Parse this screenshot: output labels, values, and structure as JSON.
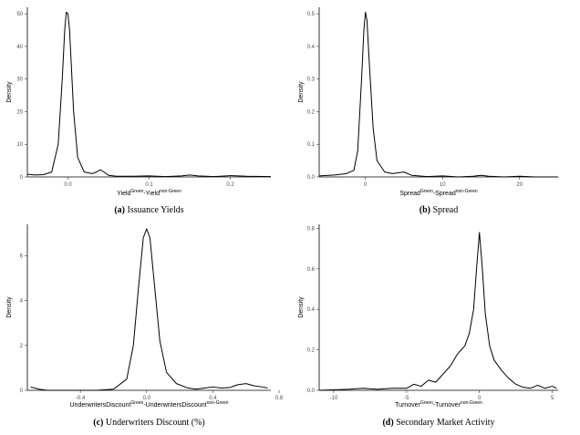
{
  "chart_data": [
    {
      "type": "line",
      "panel_label": "(a)",
      "caption": "Issuance Yields",
      "ylabel": "Density",
      "xlabel_parts": {
        "a": "Yield",
        "a_sup": "Green",
        "sep": "-",
        "b": "Yield",
        "b_sup": "non-Green"
      },
      "xlim": [
        -0.05,
        0.25
      ],
      "ylim": [
        0,
        52
      ],
      "xticks": [
        0.0,
        0.1,
        0.2
      ],
      "xtick_labels": [
        "0.0",
        "0.1",
        "0.2"
      ],
      "yticks": [
        0,
        10,
        20,
        30,
        40,
        50
      ],
      "ytick_labels": [
        "0",
        "10",
        "20",
        "30",
        "40",
        "50"
      ],
      "series": [
        {
          "x": [
            -0.05,
            -0.04,
            -0.03,
            -0.02,
            -0.012,
            -0.007,
            -0.004,
            -0.002,
            0.0,
            0.002,
            0.004,
            0.007,
            0.012,
            0.02,
            0.03,
            0.035,
            0.04,
            0.045,
            0.05,
            0.06,
            0.08,
            0.1,
            0.12,
            0.14,
            0.15,
            0.16,
            0.18,
            0.2,
            0.22,
            0.25
          ],
          "y": [
            0.8,
            0.6,
            0.7,
            1.5,
            10,
            30,
            45,
            50.5,
            50,
            45,
            35,
            20,
            6,
            1.5,
            1.0,
            1.5,
            2.2,
            1.4,
            0.5,
            0.2,
            0.2,
            0.3,
            0.1,
            0.3,
            0.6,
            0.3,
            0.1,
            0.4,
            0.2,
            0.1
          ]
        }
      ]
    },
    {
      "type": "line",
      "panel_label": "(b)",
      "caption": "Spread",
      "ylabel": "Density",
      "xlabel_parts": {
        "a": "Spread",
        "a_sup": "Green",
        "sep": "-",
        "b": "Spread",
        "b_sup": "non-Green"
      },
      "xlim": [
        -6,
        25
      ],
      "ylim": [
        0,
        0.52
      ],
      "xticks": [
        0,
        10,
        20
      ],
      "xtick_labels": [
        "0",
        "10",
        "20"
      ],
      "yticks": [
        0.0,
        0.1,
        0.2,
        0.3,
        0.4,
        0.5
      ],
      "ytick_labels": [
        "0.0",
        "0.1",
        "0.2",
        "0.3",
        "0.4",
        "0.5"
      ],
      "series": [
        {
          "x": [
            -6,
            -4,
            -2.5,
            -1.5,
            -1,
            -0.5,
            -0.2,
            0,
            0.2,
            0.5,
            1,
            1.5,
            2.5,
            3.5,
            5,
            6,
            8,
            10,
            12,
            14,
            15,
            16,
            18,
            20,
            22,
            25
          ],
          "y": [
            0.003,
            0.006,
            0.01,
            0.02,
            0.08,
            0.3,
            0.45,
            0.505,
            0.48,
            0.35,
            0.15,
            0.05,
            0.015,
            0.01,
            0.015,
            0.005,
            0.001,
            0.003,
            0.0,
            0.002,
            0.005,
            0.002,
            0.0,
            0.002,
            0.0,
            0.0
          ]
        }
      ]
    },
    {
      "type": "line",
      "panel_label": "(c)",
      "caption": "Underwriters Discount (%)",
      "ylabel": "Density",
      "xlabel_parts": {
        "a": "UnderwritersDiscount",
        "a_sup": "Green",
        "sep": "-",
        "b": "UnderwritersDiscount",
        "b_sup": "non-Green"
      },
      "xlim": [
        -0.72,
        0.75
      ],
      "ylim": [
        0,
        7.4
      ],
      "xticks": [
        -0.4,
        0.0,
        0.4,
        0.8
      ],
      "xtick_labels": [
        "-0.4",
        "0.0",
        "0.4",
        "0.8"
      ],
      "yticks": [
        0,
        2,
        4,
        6
      ],
      "ytick_labels": [
        "0",
        "2",
        "4",
        "6"
      ],
      "series": [
        {
          "x": [
            -0.7,
            -0.65,
            -0.6,
            -0.5,
            -0.3,
            -0.2,
            -0.12,
            -0.08,
            -0.05,
            -0.02,
            0.0,
            0.02,
            0.05,
            0.08,
            0.12,
            0.18,
            0.25,
            0.3,
            0.35,
            0.4,
            0.45,
            0.5,
            0.55,
            0.6,
            0.65,
            0.7,
            0.73
          ],
          "y": [
            0.15,
            0.05,
            0.0,
            0.0,
            0.0,
            0.05,
            0.5,
            2.0,
            4.5,
            6.8,
            7.2,
            6.8,
            4.5,
            2.2,
            0.8,
            0.3,
            0.1,
            0.05,
            0.1,
            0.15,
            0.1,
            0.12,
            0.25,
            0.3,
            0.2,
            0.15,
            0.1
          ]
        }
      ]
    },
    {
      "type": "line",
      "panel_label": "(d)",
      "caption": "Secondary Market Activity",
      "ylabel": "Density",
      "xlabel_parts": {
        "a": "Turnover",
        "a_sup": "Green",
        "sep": "-",
        "b": "Turnover",
        "b_sup": "non-Green"
      },
      "xlim": [
        -11,
        5.4
      ],
      "ylim": [
        0,
        0.82
      ],
      "xticks": [
        -10,
        -5,
        0,
        5
      ],
      "xtick_labels": [
        "-10",
        "-5",
        "0",
        "5"
      ],
      "yticks": [
        0.0,
        0.2,
        0.4,
        0.6,
        0.8
      ],
      "ytick_labels": [
        "0.0",
        "0.2",
        "0.4",
        "0.6",
        "0.8"
      ],
      "series": [
        {
          "x": [
            -11,
            -9,
            -8,
            -7,
            -6,
            -5,
            -4.5,
            -4,
            -3.5,
            -3,
            -2.5,
            -2,
            -1.5,
            -1,
            -0.7,
            -0.4,
            -0.2,
            0,
            0.2,
            0.4,
            0.7,
            1,
            1.5,
            2,
            2.5,
            3,
            3.5,
            4,
            4.5,
            5,
            5.3
          ],
          "y": [
            0.0,
            0.005,
            0.01,
            0.005,
            0.01,
            0.01,
            0.03,
            0.02,
            0.05,
            0.04,
            0.08,
            0.12,
            0.18,
            0.22,
            0.28,
            0.4,
            0.6,
            0.78,
            0.6,
            0.38,
            0.22,
            0.15,
            0.1,
            0.06,
            0.03,
            0.015,
            0.01,
            0.025,
            0.01,
            0.02,
            0.01
          ]
        }
      ]
    }
  ]
}
